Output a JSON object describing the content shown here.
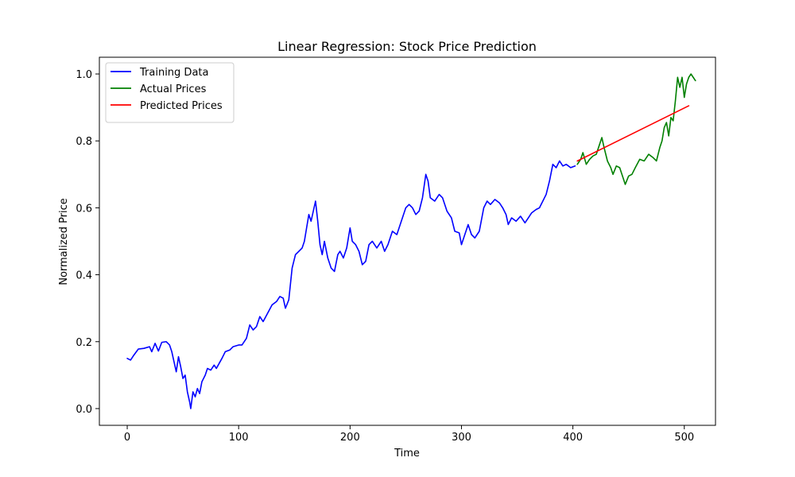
{
  "chart_data": {
    "type": "line",
    "title": "Linear Regression: Stock Price Prediction",
    "xlabel": "Time",
    "ylabel": "Normalized Price",
    "xlim": [
      -25,
      528
    ],
    "ylim": [
      -0.05,
      1.05
    ],
    "xticks": [
      0,
      100,
      200,
      300,
      400,
      500
    ],
    "yticks": [
      0.0,
      0.2,
      0.4,
      0.6,
      0.8,
      1.0
    ],
    "xtick_labels": [
      "0",
      "100",
      "200",
      "300",
      "400",
      "500"
    ],
    "ytick_labels": [
      "0.0",
      "0.2",
      "0.4",
      "0.6",
      "0.8",
      "1.0"
    ],
    "legend_position": "top-left",
    "grid": false,
    "series": [
      {
        "name": "Training Data",
        "color": "#0000ff",
        "points": [
          [
            0,
            0.15
          ],
          [
            3,
            0.145
          ],
          [
            6,
            0.16
          ],
          [
            10,
            0.178
          ],
          [
            15,
            0.18
          ],
          [
            20,
            0.185
          ],
          [
            22,
            0.17
          ],
          [
            25,
            0.195
          ],
          [
            28,
            0.172
          ],
          [
            31,
            0.198
          ],
          [
            35,
            0.2
          ],
          [
            38,
            0.19
          ],
          [
            40,
            0.17
          ],
          [
            42,
            0.14
          ],
          [
            44,
            0.11
          ],
          [
            46,
            0.155
          ],
          [
            48,
            0.125
          ],
          [
            50,
            0.09
          ],
          [
            52,
            0.1
          ],
          [
            54,
            0.05
          ],
          [
            56,
            0.02
          ],
          [
            57,
            0.0
          ],
          [
            59,
            0.05
          ],
          [
            61,
            0.035
          ],
          [
            63,
            0.06
          ],
          [
            65,
            0.045
          ],
          [
            67,
            0.08
          ],
          [
            70,
            0.1
          ],
          [
            72,
            0.12
          ],
          [
            75,
            0.115
          ],
          [
            78,
            0.13
          ],
          [
            80,
            0.12
          ],
          [
            85,
            0.15
          ],
          [
            88,
            0.17
          ],
          [
            92,
            0.175
          ],
          [
            95,
            0.185
          ],
          [
            100,
            0.19
          ],
          [
            103,
            0.19
          ],
          [
            107,
            0.21
          ],
          [
            110,
            0.25
          ],
          [
            113,
            0.235
          ],
          [
            116,
            0.245
          ],
          [
            119,
            0.275
          ],
          [
            122,
            0.26
          ],
          [
            126,
            0.285
          ],
          [
            130,
            0.31
          ],
          [
            134,
            0.32
          ],
          [
            137,
            0.335
          ],
          [
            140,
            0.33
          ],
          [
            142,
            0.3
          ],
          [
            145,
            0.325
          ],
          [
            148,
            0.42
          ],
          [
            151,
            0.46
          ],
          [
            154,
            0.47
          ],
          [
            157,
            0.48
          ],
          [
            159,
            0.5
          ],
          [
            161,
            0.54
          ],
          [
            163,
            0.58
          ],
          [
            165,
            0.56
          ],
          [
            167,
            0.59
          ],
          [
            169,
            0.62
          ],
          [
            171,
            0.56
          ],
          [
            173,
            0.49
          ],
          [
            175,
            0.46
          ],
          [
            177,
            0.5
          ],
          [
            180,
            0.45
          ],
          [
            183,
            0.42
          ],
          [
            186,
            0.41
          ],
          [
            189,
            0.46
          ],
          [
            191,
            0.47
          ],
          [
            194,
            0.45
          ],
          [
            197,
            0.48
          ],
          [
            200,
            0.54
          ],
          [
            202,
            0.5
          ],
          [
            205,
            0.49
          ],
          [
            208,
            0.47
          ],
          [
            211,
            0.43
          ],
          [
            214,
            0.44
          ],
          [
            217,
            0.49
          ],
          [
            220,
            0.5
          ],
          [
            224,
            0.48
          ],
          [
            228,
            0.5
          ],
          [
            231,
            0.47
          ],
          [
            234,
            0.49
          ],
          [
            238,
            0.53
          ],
          [
            242,
            0.52
          ],
          [
            246,
            0.56
          ],
          [
            250,
            0.6
          ],
          [
            253,
            0.61
          ],
          [
            256,
            0.6
          ],
          [
            259,
            0.58
          ],
          [
            262,
            0.59
          ],
          [
            265,
            0.63
          ],
          [
            268,
            0.7
          ],
          [
            270,
            0.68
          ],
          [
            272,
            0.63
          ],
          [
            276,
            0.62
          ],
          [
            280,
            0.64
          ],
          [
            283,
            0.63
          ],
          [
            287,
            0.59
          ],
          [
            291,
            0.57
          ],
          [
            294,
            0.53
          ],
          [
            298,
            0.525
          ],
          [
            300,
            0.49
          ],
          [
            303,
            0.52
          ],
          [
            306,
            0.55
          ],
          [
            309,
            0.52
          ],
          [
            312,
            0.51
          ],
          [
            316,
            0.53
          ],
          [
            320,
            0.6
          ],
          [
            323,
            0.62
          ],
          [
            326,
            0.61
          ],
          [
            330,
            0.625
          ],
          [
            334,
            0.615
          ],
          [
            337,
            0.6
          ],
          [
            340,
            0.58
          ],
          [
            342,
            0.55
          ],
          [
            345,
            0.57
          ],
          [
            349,
            0.56
          ],
          [
            353,
            0.575
          ],
          [
            357,
            0.555
          ],
          [
            360,
            0.57
          ],
          [
            363,
            0.585
          ],
          [
            367,
            0.595
          ],
          [
            370,
            0.6
          ],
          [
            373,
            0.62
          ],
          [
            376,
            0.64
          ],
          [
            379,
            0.68
          ],
          [
            382,
            0.73
          ],
          [
            385,
            0.72
          ],
          [
            388,
            0.74
          ],
          [
            391,
            0.725
          ],
          [
            394,
            0.73
          ],
          [
            398,
            0.72
          ],
          [
            402,
            0.725
          ]
        ]
      },
      {
        "name": "Actual Prices",
        "color": "#008000",
        "points": [
          [
            404,
            0.73
          ],
          [
            407,
            0.745
          ],
          [
            409,
            0.765
          ],
          [
            412,
            0.73
          ],
          [
            415,
            0.745
          ],
          [
            418,
            0.755
          ],
          [
            421,
            0.76
          ],
          [
            424,
            0.79
          ],
          [
            426,
            0.81
          ],
          [
            428,
            0.78
          ],
          [
            431,
            0.74
          ],
          [
            434,
            0.72
          ],
          [
            436,
            0.7
          ],
          [
            439,
            0.725
          ],
          [
            442,
            0.72
          ],
          [
            445,
            0.69
          ],
          [
            447,
            0.67
          ],
          [
            450,
            0.695
          ],
          [
            453,
            0.7
          ],
          [
            456,
            0.72
          ],
          [
            460,
            0.745
          ],
          [
            464,
            0.74
          ],
          [
            468,
            0.76
          ],
          [
            472,
            0.75
          ],
          [
            475,
            0.74
          ],
          [
            478,
            0.78
          ],
          [
            480,
            0.8
          ],
          [
            482,
            0.84
          ],
          [
            484,
            0.855
          ],
          [
            486,
            0.815
          ],
          [
            488,
            0.87
          ],
          [
            490,
            0.86
          ],
          [
            492,
            0.92
          ],
          [
            494,
            0.99
          ],
          [
            496,
            0.96
          ],
          [
            498,
            0.99
          ],
          [
            500,
            0.93
          ],
          [
            502,
            0.97
          ],
          [
            504,
            0.99
          ],
          [
            506,
            1.0
          ],
          [
            508,
            0.99
          ],
          [
            510,
            0.98
          ]
        ]
      },
      {
        "name": "Predicted Prices",
        "color": "#ff0000",
        "points": [
          [
            404,
            0.74
          ],
          [
            504,
            0.905
          ]
        ]
      }
    ]
  }
}
